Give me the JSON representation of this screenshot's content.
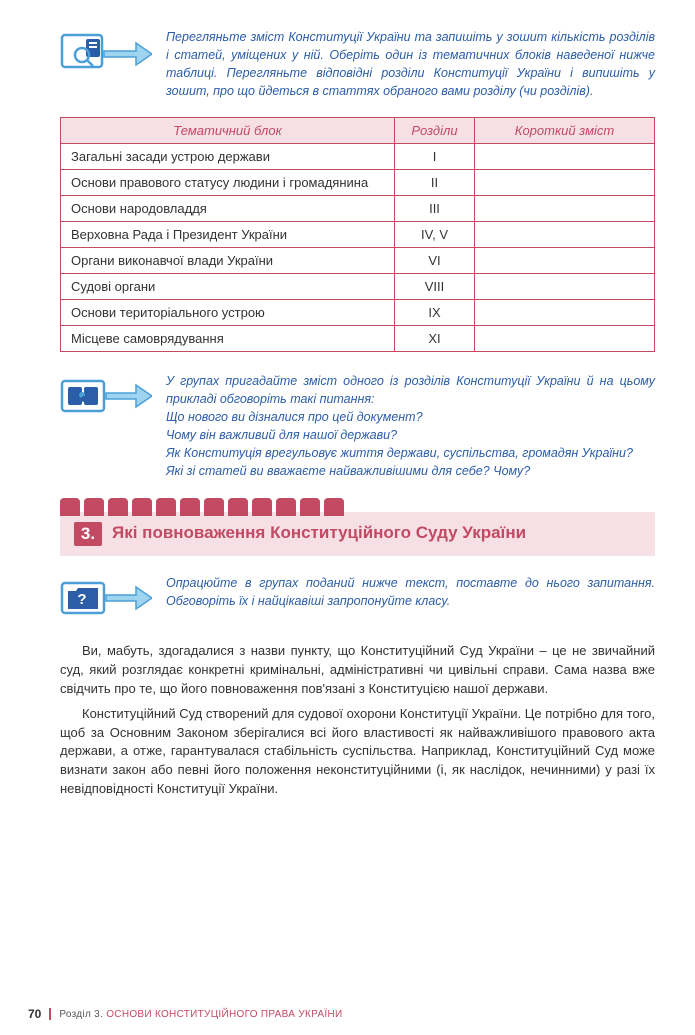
{
  "colors": {
    "accent_blue": "#2b5da8",
    "accent_pink": "#c24a63",
    "header_bg": "#f7e0e5",
    "icon_blue": "#4a9fd8",
    "icon_dark": "#2b5da8",
    "text": "#333333"
  },
  "task1": {
    "text": "Перегляньте зміст Конституції України та запишіть у зошит кількість розділів і статей, уміщених у ній. Оберіть один із тематичних блоків наведеної нижче таблиці. Перегляньте відповідні розділи Конституції України і випишіть у зошит, про що йдеться в статтях обраного вами розділу (чи розділів)."
  },
  "table": {
    "headers": [
      "Тематичний блок",
      "Розділи",
      "Короткий зміст"
    ],
    "col_widths": [
      "auto",
      "80px",
      "180px"
    ],
    "rows": [
      {
        "block": "Загальні засади устрою держави",
        "rozdil": "I",
        "short": ""
      },
      {
        "block": "Основи правового статусу людини і громадянина",
        "rozdil": "II",
        "short": ""
      },
      {
        "block": "Основи народовладдя",
        "rozdil": "III",
        "short": ""
      },
      {
        "block": "Верховна Рада і Президент України",
        "rozdil": "IV, V",
        "short": ""
      },
      {
        "block": "Органи виконавчої влади України",
        "rozdil": "VI",
        "short": ""
      },
      {
        "block": "Судові органи",
        "rozdil": "VIII",
        "short": ""
      },
      {
        "block": "Основи територіального устрою",
        "rozdil": "IX",
        "short": ""
      },
      {
        "block": "Місцеве самоврядування",
        "rozdil": "XI",
        "short": ""
      }
    ]
  },
  "task2": {
    "lines": [
      "У групах пригадайте зміст одного із розділів Конституції України й на цьому прикладі обговоріть такі питання:",
      "Що нового ви дізналися про цей документ?",
      "Чому він важливий для нашої держави?",
      "Як Конституція врегульовує життя держави, суспільства, громадян України?",
      "Які зі статей ви вважаєте найважливішими для себе? Чому?"
    ]
  },
  "section": {
    "number": "3.",
    "title": "Які повноваження Конституційного Суду України"
  },
  "task3": {
    "text": "Опрацюйте в групах поданий нижче текст, поставте до нього запитання. Обговоріть їх і найцікавіші запропонуйте класу."
  },
  "paragraphs": [
    "Ви, мабуть, здогадалися з назви пункту, що Конституційний Суд України – це не звичайний суд, який розглядає конкретні кримінальні, адміністративні чи цивільні справи. Сама назва вже свідчить про те, що його повноваження пов'язані з Конституцією нашої держави.",
    "Конституційний Суд створений для судової охорони Конституції України. Це потрібно для того, щоб за Основним Законом зберігалися всі його властивості як найважливішого правового акта держави, а отже, гарантувалася стабільність суспільства. Наприклад, Конституційний Суд може визнати закон або певні його положення неконституційними (і, як наслідок, нечинними) у разі їх невідповідності Конституції України."
  ],
  "footer": {
    "page": "70",
    "label_prefix": "Розділ 3.",
    "label_rest": "ОСНОВИ КОНСТИТУЦІЙНОГО ПРАВА УКРАЇНИ"
  }
}
